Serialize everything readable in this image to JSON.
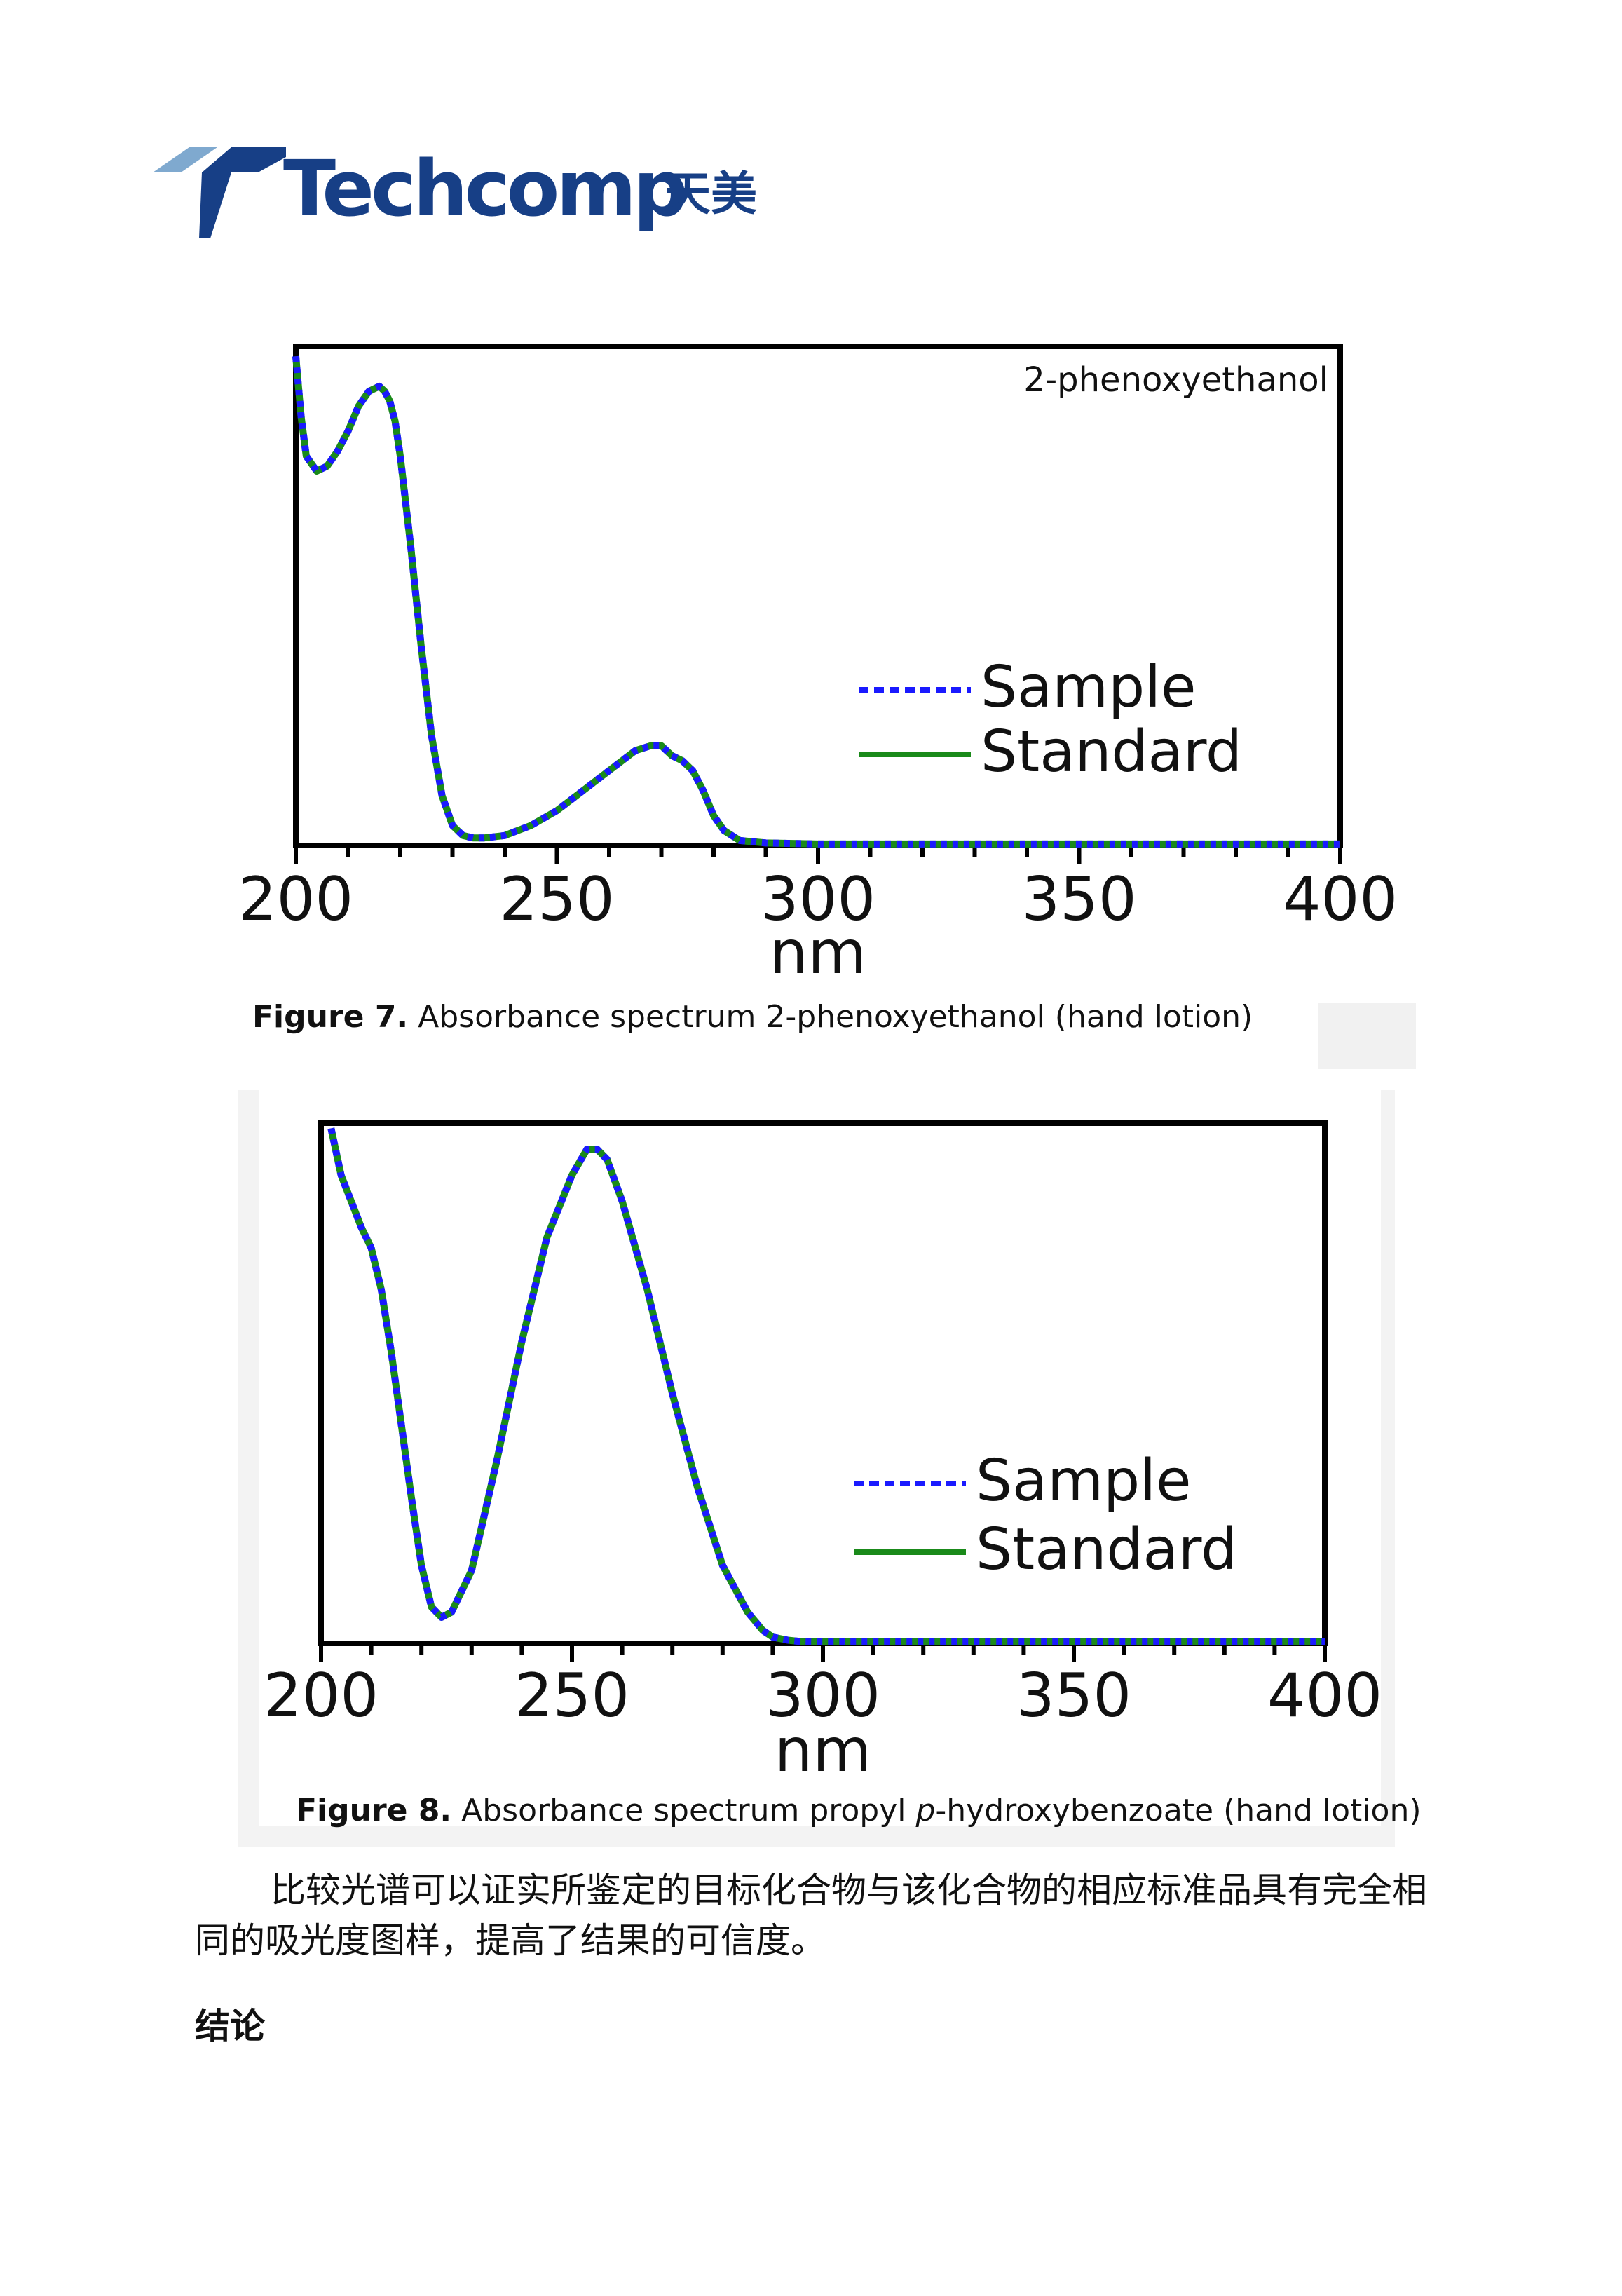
{
  "logo": {
    "brand": "Techcomp",
    "brand_cn": "天美",
    "colors": {
      "dark": "#173f86",
      "light": "#7fa9cf"
    }
  },
  "figures": [
    {
      "id": "fig7",
      "caption_label": "Figure 7.",
      "caption_text": " Absorbance spectrum 2-phenoxyethanol (hand lotion)",
      "annotation": "2-phenoxyethanol",
      "legend": [
        "Sample",
        "Standard"
      ]
    },
    {
      "id": "fig8",
      "caption_label": "Figure 8.",
      "caption_pre": " Absorbance spectrum propyl ",
      "caption_italic": "p",
      "caption_post": "-hydroxybenzoate (hand lotion)",
      "legend": [
        "Sample",
        "Standard"
      ]
    }
  ],
  "chart_data": [
    {
      "type": "line",
      "title": "2-phenoxyethanol",
      "xlabel": "nm",
      "ylabel": "",
      "xlim": [
        200,
        400
      ],
      "xticks": [
        200,
        250,
        300,
        350,
        400
      ],
      "ylim": [
        0,
        1.0
      ],
      "grid": false,
      "legend_position": "right",
      "colors": {
        "Sample": "#1a1aff",
        "Standard": "#1a8a1a"
      },
      "series": [
        {
          "name": "Sample",
          "style": "dashed",
          "x": [
            200,
            201,
            202,
            204,
            206,
            208,
            210,
            212,
            214,
            216,
            217,
            218,
            219,
            220,
            222,
            224,
            226,
            228,
            230,
            232,
            234,
            236,
            240,
            245,
            250,
            255,
            260,
            265,
            268,
            270,
            272,
            274,
            276,
            278,
            280,
            282,
            285,
            290,
            300,
            320,
            340,
            360,
            380,
            400
          ],
          "y": [
            0.98,
            0.86,
            0.78,
            0.75,
            0.76,
            0.79,
            0.83,
            0.88,
            0.91,
            0.92,
            0.91,
            0.89,
            0.85,
            0.78,
            0.6,
            0.4,
            0.22,
            0.1,
            0.04,
            0.02,
            0.015,
            0.015,
            0.02,
            0.04,
            0.07,
            0.11,
            0.15,
            0.19,
            0.2,
            0.2,
            0.18,
            0.17,
            0.15,
            0.11,
            0.06,
            0.03,
            0.01,
            0.005,
            0.003,
            0.003,
            0.003,
            0.003,
            0.003,
            0.003
          ]
        },
        {
          "name": "Standard",
          "style": "solid",
          "x": [
            200,
            201,
            202,
            204,
            206,
            208,
            210,
            212,
            214,
            216,
            217,
            218,
            219,
            220,
            222,
            224,
            226,
            228,
            230,
            232,
            234,
            236,
            240,
            245,
            250,
            255,
            260,
            265,
            268,
            270,
            272,
            274,
            276,
            278,
            280,
            282,
            285,
            290,
            300,
            320,
            340,
            360,
            380,
            400
          ],
          "y": [
            0.98,
            0.86,
            0.78,
            0.75,
            0.76,
            0.79,
            0.83,
            0.88,
            0.91,
            0.92,
            0.91,
            0.89,
            0.85,
            0.78,
            0.6,
            0.4,
            0.22,
            0.1,
            0.04,
            0.02,
            0.015,
            0.015,
            0.02,
            0.04,
            0.07,
            0.11,
            0.15,
            0.19,
            0.2,
            0.2,
            0.18,
            0.17,
            0.15,
            0.11,
            0.06,
            0.03,
            0.01,
            0.005,
            0.003,
            0.003,
            0.003,
            0.003,
            0.003,
            0.003
          ]
        }
      ]
    },
    {
      "type": "line",
      "xlabel": "nm",
      "ylabel": "",
      "xlim": [
        200,
        400
      ],
      "xticks": [
        200,
        250,
        300,
        350,
        400
      ],
      "ylim": [
        0,
        1.0
      ],
      "grid": false,
      "legend_position": "right",
      "colors": {
        "Sample": "#1a1aff",
        "Standard": "#1a8a1a"
      },
      "series": [
        {
          "name": "Sample",
          "style": "dashed",
          "x": [
            202,
            204,
            206,
            208,
            210,
            212,
            214,
            216,
            218,
            220,
            222,
            224,
            226,
            230,
            235,
            240,
            245,
            250,
            253,
            255,
            257,
            260,
            265,
            270,
            275,
            280,
            285,
            288,
            290,
            293,
            295,
            300,
            320,
            340,
            360,
            380,
            400
          ],
          "y": [
            0.99,
            0.9,
            0.85,
            0.8,
            0.76,
            0.68,
            0.56,
            0.42,
            0.28,
            0.15,
            0.07,
            0.05,
            0.06,
            0.14,
            0.35,
            0.58,
            0.78,
            0.9,
            0.95,
            0.95,
            0.93,
            0.85,
            0.68,
            0.48,
            0.3,
            0.15,
            0.06,
            0.025,
            0.012,
            0.006,
            0.004,
            0.003,
            0.003,
            0.003,
            0.003,
            0.003,
            0.003
          ]
        },
        {
          "name": "Standard",
          "style": "solid",
          "x": [
            202,
            204,
            206,
            208,
            210,
            212,
            214,
            216,
            218,
            220,
            222,
            224,
            226,
            230,
            235,
            240,
            245,
            250,
            253,
            255,
            257,
            260,
            265,
            270,
            275,
            280,
            285,
            288,
            290,
            293,
            295,
            300,
            320,
            340,
            360,
            380,
            400
          ],
          "y": [
            0.99,
            0.9,
            0.85,
            0.8,
            0.76,
            0.68,
            0.56,
            0.42,
            0.28,
            0.15,
            0.07,
            0.05,
            0.06,
            0.14,
            0.35,
            0.58,
            0.78,
            0.9,
            0.95,
            0.95,
            0.93,
            0.85,
            0.68,
            0.48,
            0.3,
            0.15,
            0.06,
            0.025,
            0.012,
            0.006,
            0.004,
            0.003,
            0.003,
            0.003,
            0.003,
            0.003,
            0.003
          ]
        }
      ]
    }
  ],
  "body": {
    "paragraph": "比较光谱可以证实所鉴定的目标化合物与该化合物的相应标准品具有完全相同的吸光度图样，提高了结果的可信度。",
    "heading": "结论"
  }
}
